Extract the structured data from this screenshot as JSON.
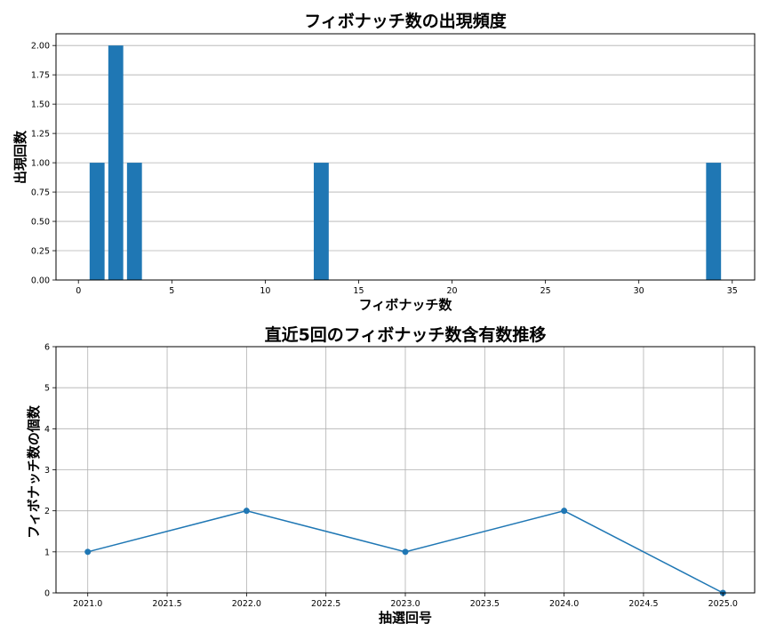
{
  "chart_data": [
    {
      "type": "bar",
      "title": "フィボナッチ数の出現頻度",
      "xlabel": "フィボナッチ数",
      "ylabel": "出現回数",
      "x": [
        1,
        2,
        3,
        13,
        34
      ],
      "values": [
        1,
        2,
        1,
        1,
        1
      ],
      "xlim": [
        -1.2,
        36.2
      ],
      "ylim": [
        0,
        2.1
      ],
      "xticks": [
        0,
        5,
        10,
        15,
        20,
        25,
        30,
        35
      ],
      "xtick_labels": [
        "0",
        "5",
        "10",
        "15",
        "20",
        "25",
        "30",
        "35"
      ],
      "yticks": [
        0,
        0.25,
        0.5,
        0.75,
        1.0,
        1.25,
        1.5,
        1.75,
        2.0
      ],
      "ytick_labels": [
        "0.00",
        "0.25",
        "0.50",
        "0.75",
        "1.00",
        "1.25",
        "1.50",
        "1.75",
        "2.00"
      ],
      "grid": "y-only",
      "color": "#1f77b4"
    },
    {
      "type": "line",
      "title": "直近5回のフィボナッチ数含有数推移",
      "xlabel": "抽選回号",
      "ylabel": "フィボナッチ数の個数",
      "x": [
        2021.0,
        2022.0,
        2023.0,
        2024.0,
        2025.0
      ],
      "y": [
        1,
        2,
        1,
        2,
        0
      ],
      "xlim": [
        2020.8,
        2025.2
      ],
      "ylim": [
        0,
        6
      ],
      "xticks": [
        2021.0,
        2021.5,
        2022.0,
        2022.5,
        2023.0,
        2023.5,
        2024.0,
        2024.5,
        2025.0
      ],
      "xtick_labels": [
        "2021.0",
        "2021.5",
        "2022.0",
        "2022.5",
        "2023.0",
        "2023.5",
        "2024.0",
        "2024.5",
        "2025.0"
      ],
      "yticks": [
        0,
        1,
        2,
        3,
        4,
        5,
        6
      ],
      "ytick_labels": [
        "0",
        "1",
        "2",
        "3",
        "4",
        "5",
        "6"
      ],
      "grid": "both",
      "marker": "circle",
      "color": "#1f77b4"
    }
  ]
}
